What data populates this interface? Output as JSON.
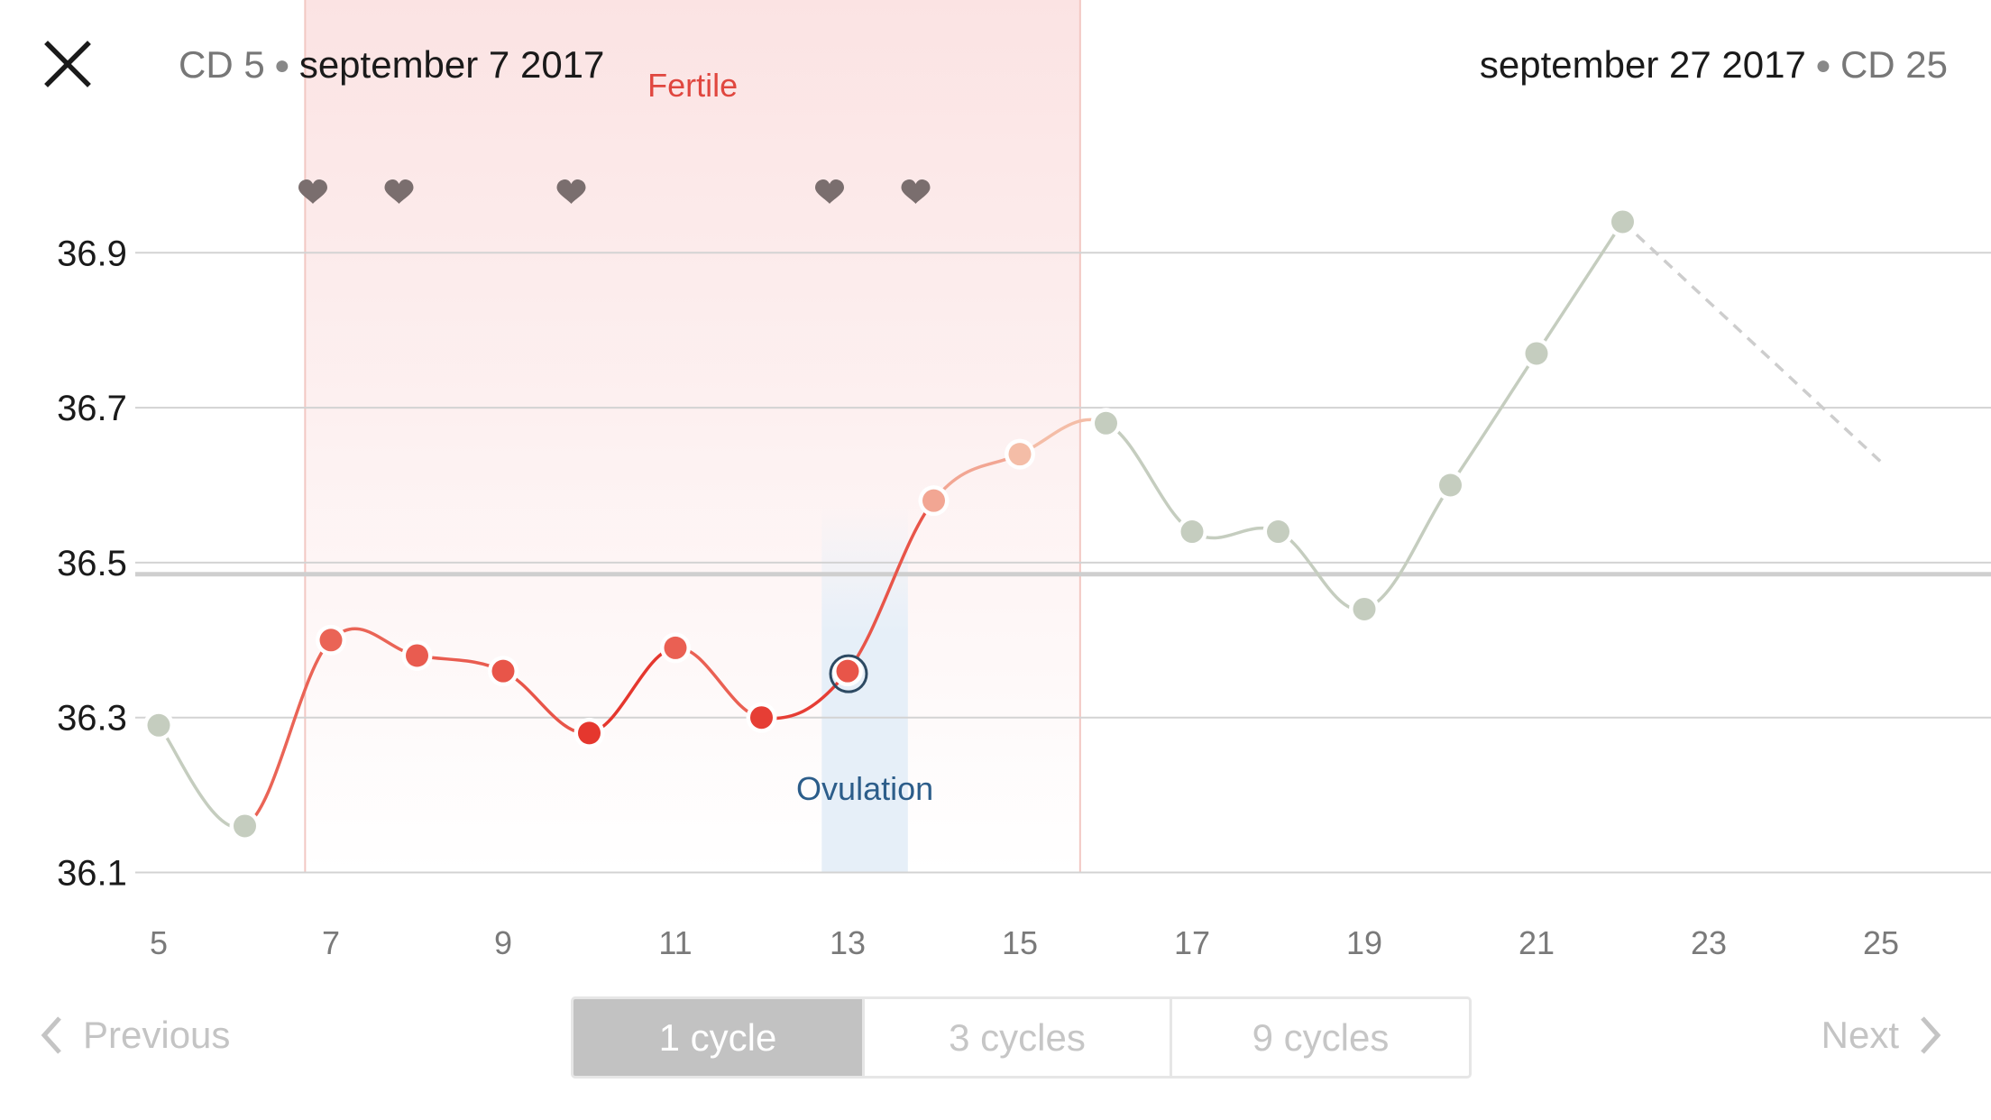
{
  "header": {
    "start_cd": "CD 5",
    "start_date": "september 7 2017",
    "end_date": "september 27 2017",
    "end_cd": "CD 25"
  },
  "controls": {
    "previous_label": "Previous",
    "next_label": "Next",
    "range_options": [
      "1 cycle",
      "3 cycles",
      "9 cycles"
    ],
    "selected_range": "1 cycle"
  },
  "icons": {
    "close": "close-icon",
    "intercourse": "heart-icon",
    "previous": "chevron-left-icon",
    "next": "chevron-right-icon"
  },
  "colors": {
    "fertile_window": "#fbe3e3",
    "fertile_label": "#e0473f",
    "ovulation_band": "#e6eff8",
    "ovulation_label": "#2c5d8a",
    "low_temp": "#c5cdbf",
    "high_temp": "#e85a4f",
    "heart": "#7a6e6e"
  },
  "chart_data": {
    "type": "line",
    "title": "",
    "xlabel": "",
    "ylabel": "",
    "xlim": [
      5,
      25
    ],
    "ylim": [
      36.1,
      36.97
    ],
    "x_ticks": [
      "5",
      "7",
      "9",
      "11",
      "13",
      "15",
      "17",
      "19",
      "21",
      "23",
      "25"
    ],
    "y_ticks": [
      "36.1",
      "36.3",
      "36.5",
      "36.7",
      "36.9"
    ],
    "grid": true,
    "cover_line": 36.485,
    "fertile_window": {
      "label": "Fertile",
      "start": 6.7,
      "end": 15.7
    },
    "ovulation": {
      "label": "Ovulation",
      "start": 12.7,
      "end": 13.7
    },
    "intercourse_days": [
      7,
      8,
      10,
      13,
      14
    ],
    "series": [
      {
        "x": [
          5,
          6,
          7,
          8,
          9,
          10,
          11,
          12,
          13,
          14,
          15,
          16,
          17,
          18,
          19,
          20,
          21,
          22
        ],
        "y": [
          36.29,
          36.16,
          36.4,
          36.38,
          36.36,
          36.28,
          36.39,
          36.3,
          36.36,
          36.58,
          36.64,
          36.68,
          36.54,
          36.54,
          36.44,
          36.6,
          36.77,
          36.94
        ]
      }
    ],
    "projection": {
      "x": [
        22,
        25
      ],
      "y": [
        36.94,
        36.63
      ]
    }
  }
}
